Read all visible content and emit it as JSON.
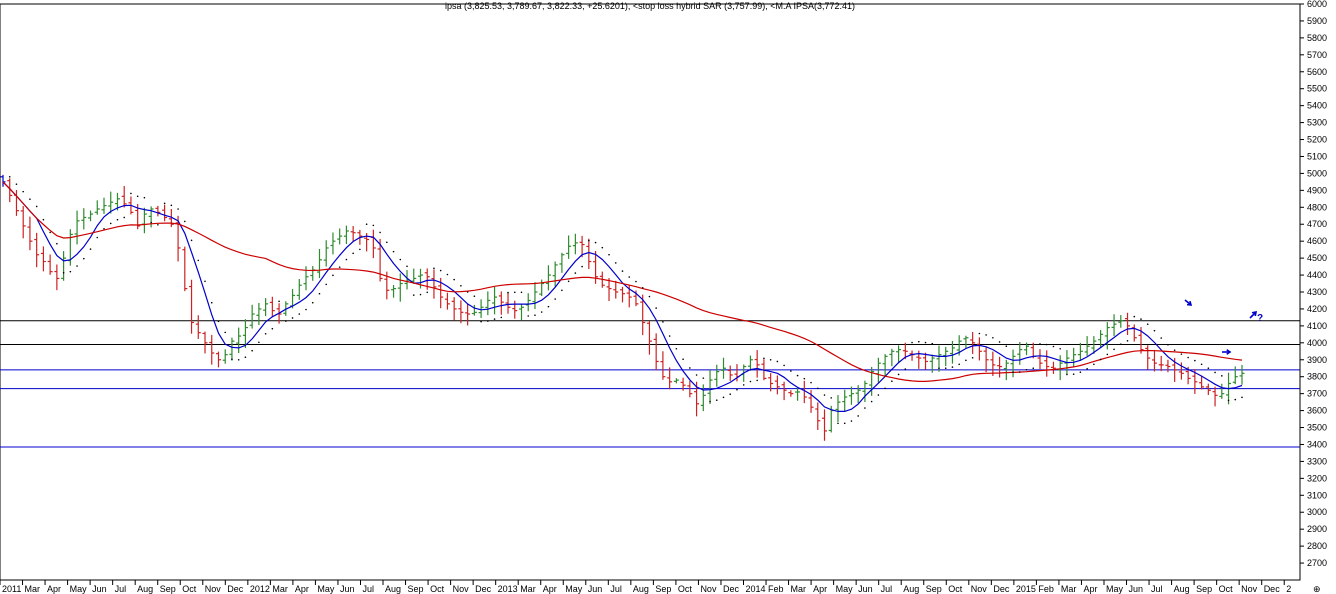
{
  "chart_data": {
    "type": "bar",
    "subtype": "ohlc",
    "title": "ipsa (3,825.53, 3,789.67, 3,822.33, +25.6201), <stop loss hybrid SAR (3,757.99), <M.A IPSA(3,772.41)",
    "corner_glyph": "⊕",
    "ylim": [
      2600,
      6000
    ],
    "y_ticks": [
      2700,
      2800,
      2900,
      3000,
      3100,
      3200,
      3300,
      3400,
      3500,
      3600,
      3700,
      3800,
      3900,
      4000,
      4100,
      4200,
      4300,
      4400,
      4500,
      4600,
      4700,
      4800,
      4900,
      5000,
      5100,
      5200,
      5300,
      5400,
      5500,
      5600,
      5700,
      5800,
      5900,
      6000
    ],
    "x_labels": [
      "2011",
      "Mar",
      "Apr",
      "May",
      "Jun",
      "Jul",
      "Aug",
      "Sep",
      "Oct",
      "Nov",
      "Dec",
      "2012",
      "Mar",
      "Apr",
      "May",
      "Jun",
      "Jul",
      "Aug",
      "Sep",
      "Oct",
      "Nov",
      "Dec",
      "2013",
      "Mar",
      "Apr",
      "May",
      "Jun",
      "Jul",
      "Aug",
      "Sep",
      "Oct",
      "Nov",
      "Dec",
      "2014",
      "Feb",
      "Mar",
      "Apr",
      "May",
      "Jun",
      "Jul",
      "Aug",
      "Sep",
      "Oct",
      "Nov",
      "Dec",
      "2015",
      "Feb",
      "Mar",
      "Apr",
      "May",
      "Jun",
      "Jul",
      "Aug",
      "Sep",
      "Oct",
      "Nov",
      "Dec",
      "2"
    ],
    "horizontal_levels": [
      {
        "value": 4130,
        "color": "#000000"
      },
      {
        "value": 3990,
        "color": "#000000"
      },
      {
        "value": 3840,
        "color": "#0000cc"
      },
      {
        "value": 3730,
        "color": "#0000cc"
      },
      {
        "value": 3385,
        "color": "#0000cc"
      }
    ],
    "annotation": "?",
    "series": [
      {
        "name": "ipsa",
        "kind": "ohlc",
        "colors": {
          "up": "#2e8b2e",
          "down": "#cc2222",
          "neutral": "#0000cc"
        },
        "close": [
          4950,
          4870,
          4780,
          4690,
          4600,
          4520,
          4480,
          4420,
          4380,
          4500,
          4640,
          4720,
          4740,
          4760,
          4790,
          4810,
          4830,
          4850,
          4820,
          4770,
          4690,
          4760,
          4790,
          4770,
          4740,
          4700,
          4560,
          4320,
          4120,
          4060,
          4000,
          3940,
          3900,
          3930,
          4010,
          4040,
          4090,
          4170,
          4200,
          4230,
          4190,
          4170,
          4230,
          4280,
          4340,
          4390,
          4430,
          4490,
          4560,
          4600,
          4630,
          4660,
          4650,
          4630,
          4610,
          4560,
          4380,
          4310,
          4320,
          4350,
          4370,
          4380,
          4400,
          4390,
          4330,
          4270,
          4230,
          4200,
          4180,
          4170,
          4180,
          4210,
          4250,
          4270,
          4240,
          4210,
          4190,
          4210,
          4250,
          4300,
          4350,
          4400,
          4460,
          4520,
          4570,
          4590,
          4580,
          4480,
          4390,
          4340,
          4320,
          4300,
          4290,
          4270,
          4230,
          4120,
          4010,
          3890,
          3800,
          3770,
          3780,
          3750,
          3700,
          3640,
          3690,
          3780,
          3830,
          3850,
          3810,
          3800,
          3860,
          3900,
          3870,
          3790,
          3760,
          3740,
          3720,
          3700,
          3710,
          3680,
          3620,
          3540,
          3480,
          3600,
          3650,
          3680,
          3700,
          3720,
          3760,
          3830,
          3880,
          3920,
          3950,
          3960,
          3950,
          3930,
          3910,
          3890,
          3910,
          3930,
          3950,
          3970,
          4010,
          4030,
          4000,
          3950,
          3900,
          3870,
          3860,
          3880,
          3920,
          3960,
          3980,
          3920,
          3880,
          3860,
          3850,
          3880,
          3910,
          3930,
          3950,
          3980,
          4010,
          4050,
          4090,
          4110,
          4130,
          4100,
          4030,
          3960,
          3910,
          3880,
          3870,
          3860,
          3840,
          3820,
          3790,
          3770,
          3740,
          3720,
          3690,
          3700,
          3760,
          3800,
          3820
        ]
      },
      {
        "name": "M.A IPSA",
        "kind": "line",
        "color": "#0000cc"
      },
      {
        "name": "stop loss hybrid SAR",
        "kind": "dots",
        "color": "#000000"
      },
      {
        "name": "long moving average",
        "kind": "line",
        "color": "#cc0000"
      }
    ]
  }
}
